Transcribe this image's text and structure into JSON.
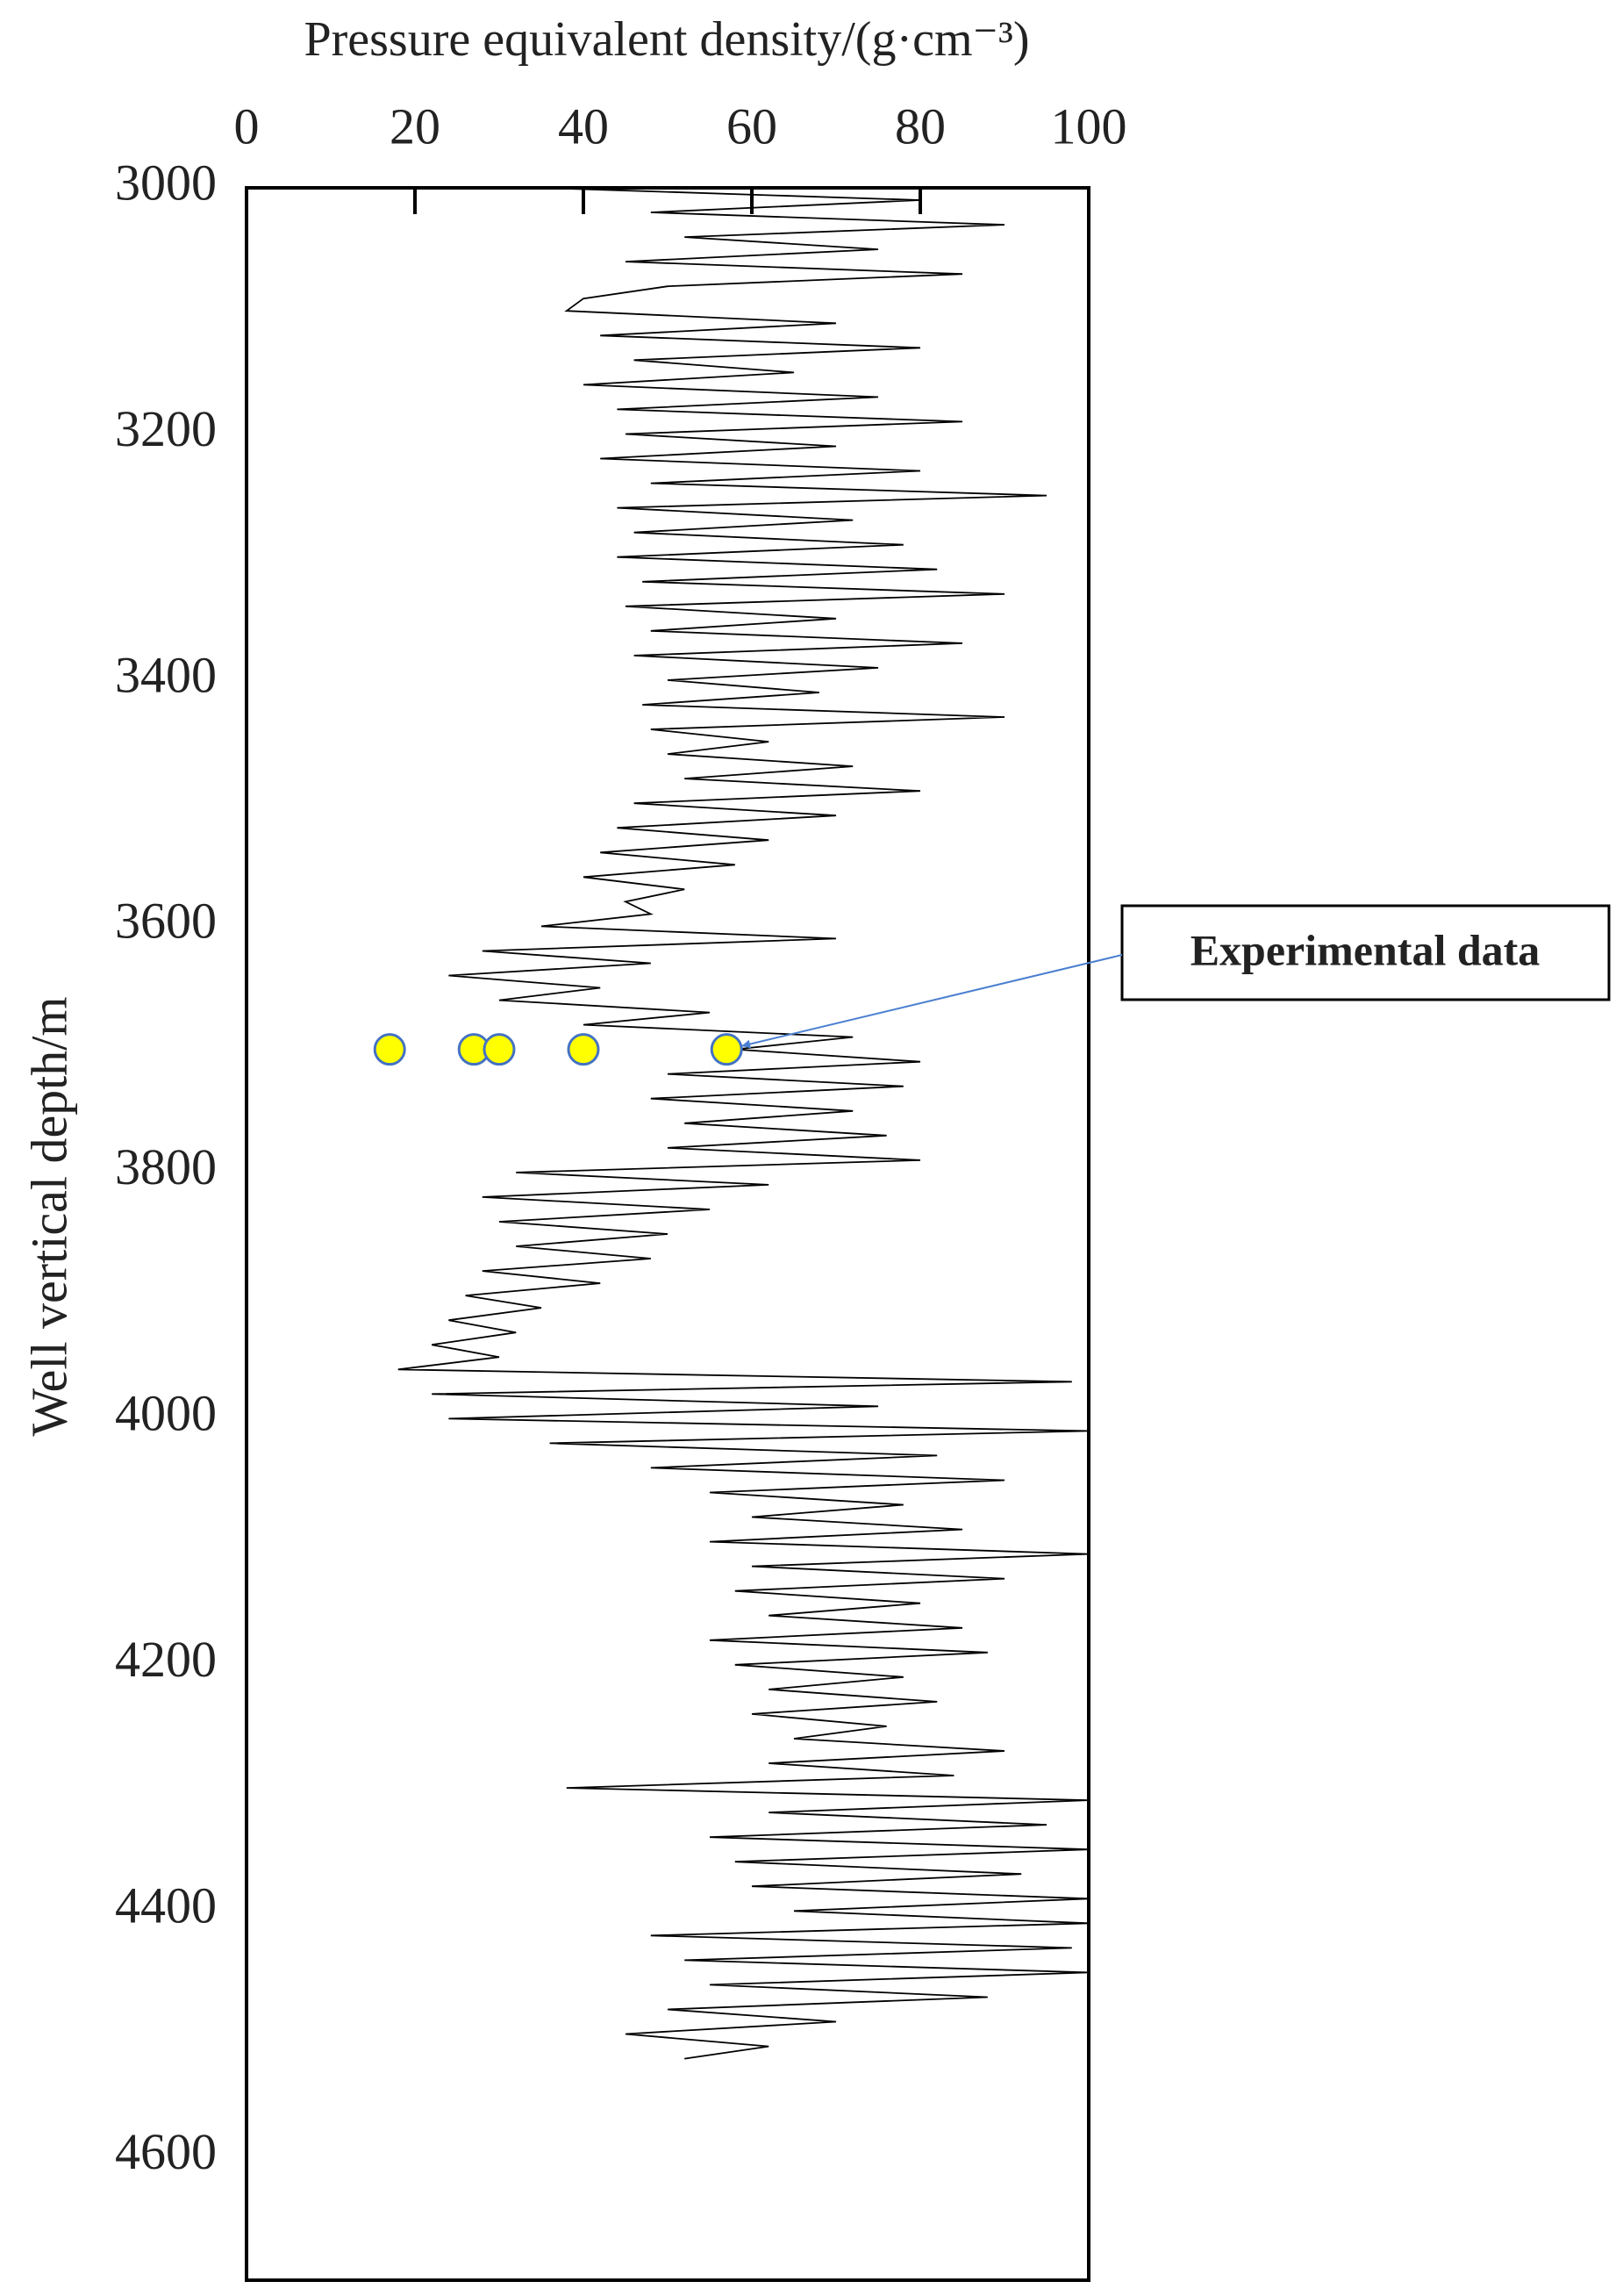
{
  "chart_data": {
    "type": "line",
    "xlabel": "Pressure equivalent density/(g·cm⁻³)",
    "ylabel": "Well vertical depth/m",
    "annotation": "Experimental data",
    "xlim": [
      0,
      100
    ],
    "xticks": [
      0,
      20,
      40,
      60,
      80,
      100
    ],
    "ylim": [
      3000,
      4700
    ],
    "yticks": [
      3000,
      3200,
      3400,
      3600,
      3800,
      4000,
      4200,
      4400,
      4600
    ],
    "y_inverted": true,
    "line": {
      "color": "#000000",
      "x": [
        35,
        80,
        48,
        90,
        52,
        75,
        45,
        85,
        50,
        40,
        38,
        70,
        42,
        80,
        46,
        65,
        40,
        75,
        44,
        85,
        45,
        70,
        42,
        80,
        48,
        95,
        44,
        72,
        46,
        78,
        44,
        82,
        47,
        90,
        45,
        70,
        48,
        85,
        46,
        75,
        50,
        68,
        47,
        90,
        48,
        62,
        50,
        72,
        52,
        80,
        46,
        70,
        44,
        62,
        42,
        58,
        40,
        52,
        45,
        48,
        35,
        70,
        28,
        48,
        24,
        42,
        30,
        55,
        40,
        72,
        58,
        80,
        50,
        78,
        48,
        72,
        52,
        76,
        50,
        80,
        32,
        62,
        28,
        55,
        30,
        50,
        32,
        48,
        28,
        42,
        26,
        35,
        24,
        32,
        22,
        30,
        18,
        98,
        22,
        75,
        24,
        100,
        36,
        82,
        48,
        90,
        55,
        78,
        60,
        85,
        55,
        100,
        60,
        90,
        58,
        80,
        62,
        85,
        55,
        88,
        58,
        78,
        62,
        82,
        60,
        76,
        65,
        90,
        62,
        84,
        38,
        100,
        62,
        95,
        55,
        100,
        58,
        92,
        60,
        100,
        65,
        100,
        48,
        98,
        52,
        100,
        55,
        88,
        50,
        70,
        45,
        62,
        52
      ],
      "y": [
        3000,
        3010,
        3020,
        3030,
        3040,
        3050,
        3060,
        3070,
        3080,
        3090,
        3100,
        3110,
        3120,
        3130,
        3140,
        3150,
        3160,
        3170,
        3180,
        3190,
        3200,
        3210,
        3220,
        3230,
        3240,
        3250,
        3260,
        3270,
        3280,
        3290,
        3300,
        3310,
        3320,
        3330,
        3340,
        3350,
        3360,
        3370,
        3380,
        3390,
        3400,
        3410,
        3420,
        3430,
        3440,
        3450,
        3460,
        3470,
        3480,
        3490,
        3500,
        3510,
        3520,
        3530,
        3540,
        3550,
        3560,
        3570,
        3580,
        3590,
        3600,
        3610,
        3620,
        3630,
        3640,
        3650,
        3660,
        3670,
        3680,
        3690,
        3700,
        3710,
        3720,
        3730,
        3740,
        3750,
        3760,
        3770,
        3780,
        3790,
        3800,
        3810,
        3820,
        3830,
        3840,
        3850,
        3860,
        3870,
        3880,
        3890,
        3900,
        3910,
        3920,
        3930,
        3940,
        3950,
        3960,
        3970,
        3980,
        3990,
        4000,
        4010,
        4020,
        4030,
        4040,
        4050,
        4060,
        4070,
        4080,
        4090,
        4100,
        4110,
        4120,
        4130,
        4140,
        4150,
        4160,
        4170,
        4180,
        4190,
        4200,
        4210,
        4220,
        4230,
        4240,
        4250,
        4260,
        4270,
        4280,
        4290,
        4300,
        4310,
        4320,
        4330,
        4340,
        4350,
        4360,
        4370,
        4380,
        4390,
        4400,
        4410,
        4420,
        4430,
        4440,
        4450,
        4460,
        4470,
        4480,
        4490,
        4500,
        4510,
        4520
      ]
    },
    "points": {
      "color": "#ffff00",
      "edge_color": "#4472c4",
      "x": [
        17,
        27,
        30,
        40,
        57
      ],
      "y": [
        3700,
        3700,
        3700,
        3700,
        3700
      ]
    }
  }
}
